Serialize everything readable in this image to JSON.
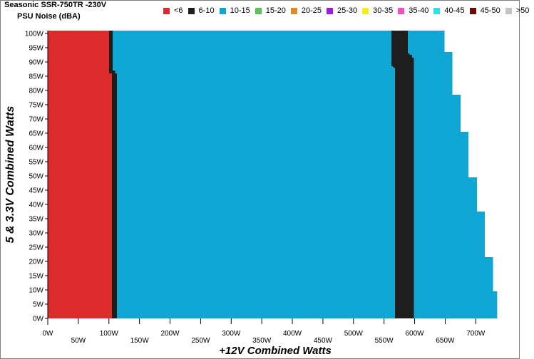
{
  "chart_data": {
    "type": "heatmap",
    "title": "Seasonic SSR-750TR -230V",
    "subtitle": "PSU Noise (dBA)",
    "xlabel": "+12V Combined Watts",
    "ylabel": "5 & 3.3V Combined Watts",
    "xlim": [
      0,
      735
    ],
    "ylim": [
      0,
      101
    ],
    "x_ticks": [
      "0W",
      "50W",
      "100W",
      "150W",
      "200W",
      "250W",
      "300W",
      "350W",
      "400W",
      "450W",
      "500W",
      "550W",
      "600W",
      "650W",
      "700W"
    ],
    "y_ticks": [
      "0W",
      "5W",
      "10W",
      "15W",
      "20W",
      "25W",
      "30W",
      "35W",
      "40W",
      "45W",
      "50W",
      "55W",
      "60W",
      "65W",
      "70W",
      "75W",
      "80W",
      "85W",
      "90W",
      "95W",
      "100W"
    ],
    "legend": [
      {
        "label": "<6",
        "color": "#dd2a2a"
      },
      {
        "label": "6-10",
        "color": "#1e1e1e"
      },
      {
        "label": "10-15",
        "color": "#0fa6d4"
      },
      {
        "label": "15-20",
        "color": "#5cbf57"
      },
      {
        "label": "20-25",
        "color": "#e38a26"
      },
      {
        "label": "25-30",
        "color": "#9a1fe0"
      },
      {
        "label": "30-35",
        "color": "#f4ee18"
      },
      {
        "label": "35-40",
        "color": "#f04ec4"
      },
      {
        "label": "40-45",
        "color": "#1ee8e8"
      },
      {
        "label": "45-50",
        "color": "#6c0a0a"
      },
      {
        "label": ">50",
        "color": "#c3c3c3"
      }
    ],
    "regions": [
      {
        "range": "<6",
        "color": "#dd2a2a",
        "polygon": [
          [
            0,
            0
          ],
          [
            0,
            101
          ],
          [
            100,
            101
          ],
          [
            100,
            86
          ],
          [
            105,
            86
          ],
          [
            105,
            0
          ]
        ]
      },
      {
        "range": "6-10",
        "color": "#1e1e1e",
        "polygon": [
          [
            105,
            0
          ],
          [
            105,
            86
          ],
          [
            100,
            86
          ],
          [
            100,
            101
          ],
          [
            106,
            101
          ],
          [
            106,
            87
          ],
          [
            110,
            87
          ],
          [
            110,
            86
          ],
          [
            113,
            86
          ],
          [
            113,
            0
          ]
        ]
      },
      {
        "range": "6-10",
        "color": "#1e1e1e",
        "polygon": [
          [
            562,
            101
          ],
          [
            562,
            88.5
          ],
          [
            565,
            88.5
          ],
          [
            565,
            88
          ],
          [
            568,
            88
          ],
          [
            568,
            0
          ],
          [
            599,
            0
          ],
          [
            599,
            91.5
          ],
          [
            596,
            91.5
          ],
          [
            596,
            92.5
          ],
          [
            592,
            92.5
          ],
          [
            592,
            93
          ],
          [
            589,
            93
          ],
          [
            589,
            101
          ]
        ]
      },
      {
        "range": "10-15",
        "color": "#0fa6d4",
        "polygon": [
          [
            113,
            0
          ],
          [
            113,
            86
          ],
          [
            110,
            86
          ],
          [
            110,
            87
          ],
          [
            106,
            87
          ],
          [
            106,
            101
          ],
          [
            562,
            101
          ],
          [
            562,
            88.5
          ],
          [
            565,
            88.5
          ],
          [
            565,
            88
          ],
          [
            568,
            88
          ],
          [
            568,
            0
          ]
        ]
      },
      {
        "range": "10-15",
        "color": "#0fa6d4",
        "polygon": [
          [
            599,
            0
          ],
          [
            599,
            91.5
          ],
          [
            596,
            91.5
          ],
          [
            596,
            92.5
          ],
          [
            592,
            92.5
          ],
          [
            592,
            93
          ],
          [
            589,
            93
          ],
          [
            589,
            101
          ],
          [
            649,
            101
          ],
          [
            649,
            93.5
          ],
          [
            662,
            93.5
          ],
          [
            662,
            78.5
          ],
          [
            675,
            78.5
          ],
          [
            675,
            65.5
          ],
          [
            688,
            65.5
          ],
          [
            688,
            49.5
          ],
          [
            702,
            49.5
          ],
          [
            702,
            37.5
          ],
          [
            715,
            37.5
          ],
          [
            715,
            21.5
          ],
          [
            728,
            21.5
          ],
          [
            728,
            9.5
          ],
          [
            742,
            9.5
          ],
          [
            742,
            0
          ]
        ]
      }
    ]
  }
}
